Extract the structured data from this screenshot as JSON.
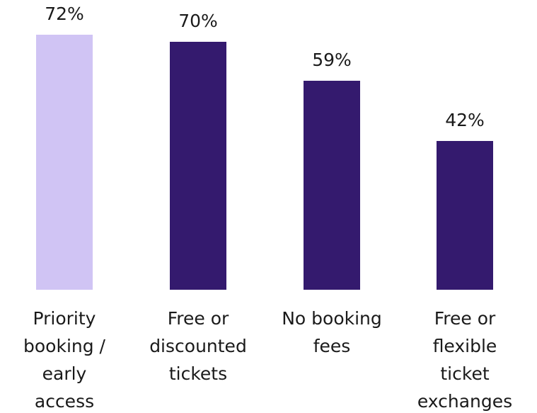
{
  "chart_data": {
    "type": "bar",
    "categories": [
      "Priority\nbooking /\nearly\naccess",
      "Free or\ndiscounted\ntickets",
      "No booking\nfees",
      "Free or\nflexible\nticket\nexchanges"
    ],
    "values": [
      72,
      70,
      59,
      42
    ],
    "value_labels": [
      "72%",
      "70%",
      "59%",
      "42%"
    ],
    "colors": [
      "#d0c4f4",
      "#341a6e",
      "#341a6e",
      "#341a6e"
    ]
  }
}
